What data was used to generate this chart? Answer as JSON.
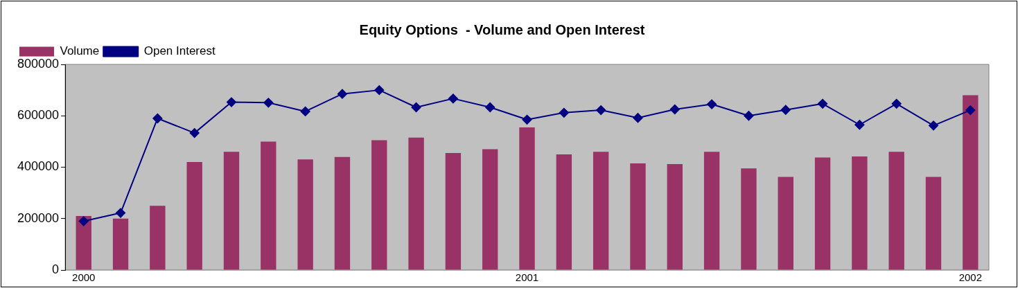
{
  "chart_data": {
    "type": "bar",
    "title": "Equity Options  - Volume and Open Interest",
    "categories": [
      "2000",
      null,
      null,
      null,
      null,
      null,
      null,
      null,
      null,
      null,
      null,
      null,
      "2001",
      null,
      null,
      null,
      null,
      null,
      null,
      null,
      null,
      null,
      null,
      null,
      "2002"
    ],
    "series": [
      {
        "name": "Volume",
        "color": "#993366",
        "values": [
          210000,
          200000,
          250000,
          420000,
          460000,
          500000,
          430000,
          440000,
          505000,
          515000,
          455000,
          470000,
          555000,
          450000,
          460000,
          415000,
          412000,
          460000,
          395000,
          362000,
          438000,
          442000,
          460000,
          362000,
          680000
        ]
      },
      {
        "name": "Open Interest",
        "type": "line",
        "color": "#000080",
        "marker": "diamond",
        "values": [
          190000,
          222000,
          590000,
          533000,
          653000,
          651000,
          617000,
          685000,
          700000,
          633000,
          667000,
          633000,
          585000,
          612000,
          622000,
          592000,
          625000,
          645000,
          600000,
          623000,
          647000,
          565000,
          647000,
          562000,
          622000
        ]
      }
    ],
    "ylim": [
      0,
      800000
    ],
    "yticks": [
      0,
      200000,
      400000,
      600000,
      800000
    ],
    "grid": false,
    "legend": "top left"
  }
}
